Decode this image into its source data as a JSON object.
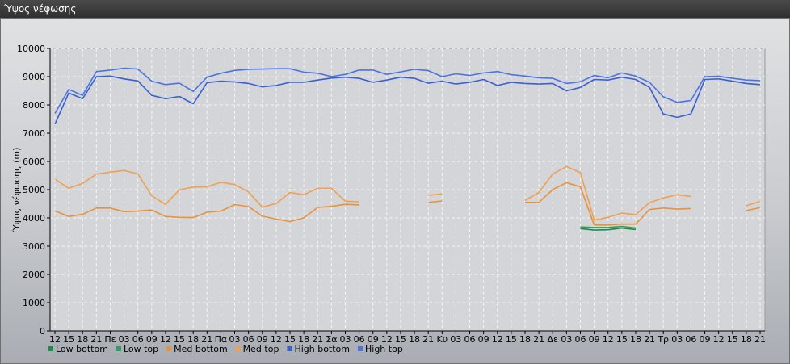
{
  "window": {
    "title": "Ύψος νέφωσης"
  },
  "chart_data": {
    "type": "line",
    "title": "",
    "xlabel": "",
    "ylabel": "Ύψος νέφωσης (m)",
    "ylim": [
      0,
      10000
    ],
    "yticks": [
      0,
      1000,
      2000,
      3000,
      4000,
      5000,
      6000,
      7000,
      8000,
      9000,
      10000
    ],
    "grid": true,
    "legend_position": "bottom-left",
    "categories": [
      "12",
      "15",
      "18",
      "21",
      "Πε",
      "03",
      "06",
      "09",
      "12",
      "15",
      "18",
      "21",
      "Πα",
      "03",
      "06",
      "09",
      "12",
      "15",
      "18",
      "21",
      "Σα",
      "03",
      "06",
      "09",
      "12",
      "15",
      "18",
      "21",
      "Κυ",
      "03",
      "06",
      "09",
      "12",
      "15",
      "18",
      "21",
      "Δε",
      "03",
      "06",
      "09",
      "12",
      "15",
      "18",
      "21",
      "Τρ",
      "03",
      "06",
      "09",
      "12",
      "15",
      "18",
      "21"
    ],
    "series": [
      {
        "name": "Low bottom",
        "color": "#1f8a4c",
        "values": [
          null,
          null,
          null,
          null,
          null,
          null,
          null,
          null,
          null,
          null,
          null,
          null,
          null,
          null,
          null,
          null,
          null,
          null,
          null,
          null,
          null,
          null,
          null,
          null,
          null,
          null,
          null,
          null,
          null,
          null,
          null,
          null,
          null,
          null,
          null,
          null,
          null,
          null,
          3620,
          3570,
          3580,
          3640,
          3590,
          null,
          null,
          null,
          null,
          null,
          null,
          null,
          null,
          null
        ]
      },
      {
        "name": "Low top",
        "color": "#2f9e5e",
        "values": [
          null,
          null,
          null,
          null,
          null,
          null,
          null,
          null,
          null,
          null,
          null,
          null,
          null,
          null,
          null,
          null,
          null,
          null,
          null,
          null,
          null,
          null,
          null,
          null,
          null,
          null,
          null,
          null,
          null,
          null,
          null,
          null,
          null,
          null,
          null,
          null,
          null,
          null,
          3680,
          3660,
          3660,
          3700,
          3640,
          null,
          null,
          null,
          null,
          null,
          null,
          null,
          null,
          null
        ]
      },
      {
        "name": "Med bottom",
        "color": "#e8923a",
        "values": [
          4250,
          4050,
          4130,
          4350,
          4350,
          4220,
          4240,
          4280,
          4050,
          4020,
          4010,
          4200,
          4240,
          4470,
          4400,
          4060,
          3960,
          3870,
          4000,
          4370,
          4410,
          4480,
          4460,
          null,
          null,
          null,
          null,
          4550,
          4600,
          null,
          null,
          null,
          null,
          null,
          4550,
          4550,
          5000,
          5250,
          5100,
          3750,
          3750,
          3780,
          3780,
          4300,
          4350,
          4310,
          4330,
          null,
          null,
          null,
          4260,
          4360
        ]
      },
      {
        "name": "Med top",
        "color": "#f0a050",
        "values": [
          5370,
          5050,
          5220,
          5550,
          5620,
          5680,
          5560,
          4780,
          4480,
          4990,
          5090,
          5100,
          5260,
          5180,
          4920,
          4380,
          4510,
          4900,
          4820,
          5050,
          5050,
          4590,
          4570,
          null,
          null,
          null,
          null,
          4800,
          4850,
          null,
          null,
          null,
          null,
          null,
          4620,
          4900,
          5550,
          5820,
          5600,
          3920,
          4020,
          4170,
          4120,
          4540,
          4710,
          4820,
          4760,
          null,
          null,
          null,
          4430,
          4580
        ]
      },
      {
        "name": "High bottom",
        "color": "#3a5fd0",
        "values": [
          7320,
          8420,
          8220,
          9000,
          9020,
          8920,
          8850,
          8340,
          8220,
          8300,
          8040,
          8790,
          8840,
          8810,
          8760,
          8640,
          8690,
          8800,
          8800,
          8880,
          8950,
          8980,
          8940,
          8800,
          8880,
          8980,
          8940,
          8770,
          8840,
          8740,
          8800,
          8900,
          8690,
          8800,
          8760,
          8740,
          8760,
          8500,
          8620,
          8900,
          8880,
          8980,
          8900,
          8620,
          7680,
          7560,
          7680,
          8900,
          8920,
          8840,
          8760,
          8720
        ]
      },
      {
        "name": "High top",
        "color": "#4a74e0",
        "values": [
          7700,
          8550,
          8340,
          9180,
          9230,
          9300,
          9270,
          8840,
          8720,
          8770,
          8480,
          8980,
          9120,
          9220,
          9260,
          9270,
          9280,
          9280,
          9160,
          9120,
          9000,
          9080,
          9230,
          9230,
          9080,
          9170,
          9260,
          9210,
          9000,
          9100,
          9040,
          9130,
          9180,
          9070,
          9020,
          8960,
          8940,
          8760,
          8820,
          9040,
          8960,
          9130,
          9020,
          8800,
          8290,
          8090,
          8160,
          9000,
          9010,
          8940,
          8880,
          8860
        ]
      }
    ]
  }
}
